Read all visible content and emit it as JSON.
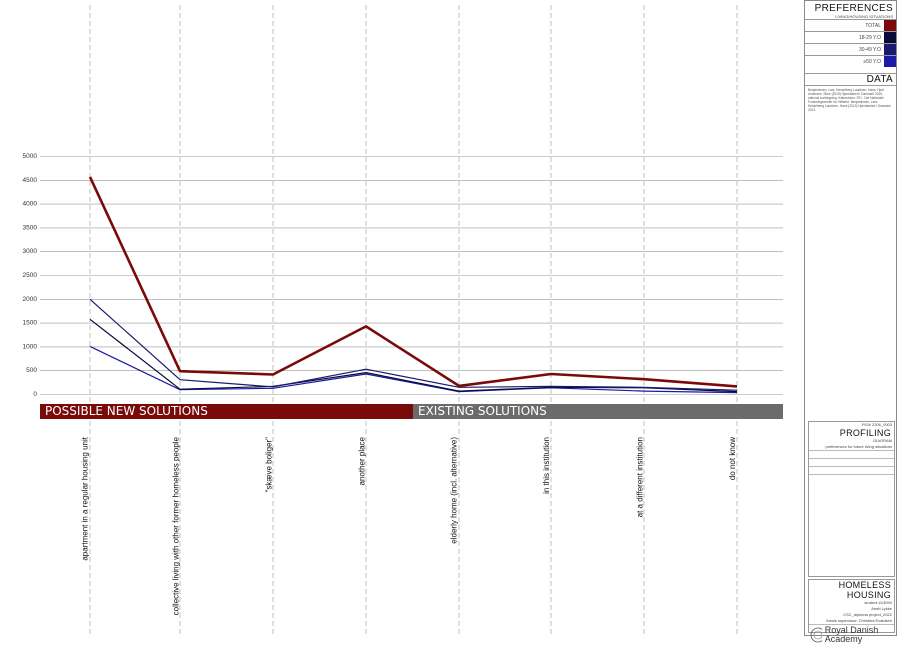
{
  "chart_data": {
    "type": "line",
    "ylim": [
      0,
      5000
    ],
    "yticks": [
      0,
      500,
      1000,
      1500,
      2000,
      2500,
      3000,
      3500,
      4000,
      4500,
      5000
    ],
    "categories": [
      "apartment in a regular housing unit",
      "collective living with other former homeless people",
      "\"skæve boliger\"",
      "another place",
      "elderly home (incl. alternative)",
      "in this institution",
      "at a different institution",
      "do not know"
    ],
    "series": [
      {
        "name": "TOTAL",
        "color": "#7a0a0a",
        "values": [
          4560,
          480,
          410,
          1420,
          170,
          420,
          310,
          160
        ]
      },
      {
        "name": "18-29 Y.O",
        "color": "#0a0a3a",
        "values": [
          1570,
          100,
          160,
          450,
          60,
          140,
          130,
          50
        ]
      },
      {
        "name": "30-49 Y.O",
        "color": "#1a1a6e",
        "values": [
          1990,
          300,
          150,
          520,
          140,
          160,
          140,
          80
        ]
      },
      {
        "name": "≥50 Y.O",
        "color": "#1a1aa8",
        "values": [
          1000,
          90,
          120,
          420,
          50,
          130,
          60,
          30
        ]
      }
    ],
    "bands": {
      "new": "POSSIBLE NEW SOLUTIONS",
      "existing": "EXISTING SOLUTIONS"
    }
  },
  "panel": {
    "preferences_title": "PREFERENCES",
    "preferences_sub": "LIVING/HOUSING SITUATIONS",
    "data_title": "DATA",
    "data_text": "Benjaminsen, Lars, Hesselberg Lauritzen, Hans, Hjort Andersen, Stine (2015) Hjemløshed i Danmark 2015, national kortlægning. København: SFI - Det Nationale Forskningscenter for Velfærd. Benjaminsen, Lars, Hesselberg Lauritzen, Hans (2013) Hjemløshed i Danmark 2013.",
    "fig": "FIG# 2206_0003",
    "profiling": "PROFILING",
    "diagram": "DIAGRAM",
    "caption": "preferences for future living situations",
    "project": "HOMELESS HOUSING",
    "student": "student #13094",
    "author": "Anett Lykke",
    "course": "CSC_diploma project_2022",
    "supervisor": "thesis supervisor: Christina Evaldsen",
    "academy": "Royal Danish Academy"
  }
}
